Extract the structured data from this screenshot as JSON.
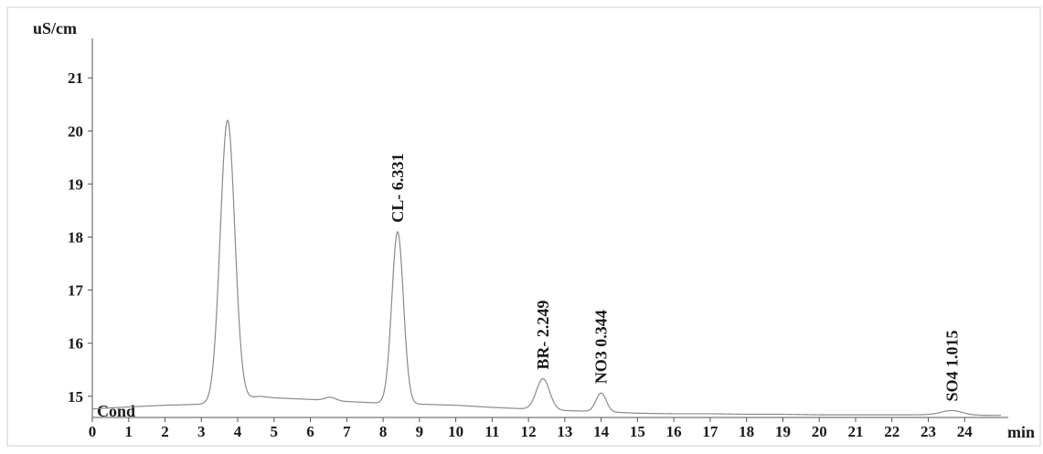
{
  "chart_data": {
    "type": "line",
    "title": "",
    "ylabel": "uS/cm",
    "xlabel": "min",
    "trace_label": "Cond",
    "xlim": [
      0,
      25
    ],
    "ylim": [
      14.6,
      21.4
    ],
    "x_ticks": [
      0,
      1,
      2,
      3,
      4,
      5,
      6,
      7,
      8,
      9,
      10,
      11,
      12,
      13,
      14,
      15,
      16,
      17,
      18,
      19,
      20,
      21,
      22,
      23,
      24
    ],
    "y_ticks": [
      15,
      16,
      17,
      18,
      19,
      20,
      21
    ],
    "grid": false,
    "series": [
      {
        "baseline": [
          [
            0,
            14.76
          ],
          [
            1,
            14.8
          ],
          [
            2,
            14.83
          ],
          [
            3,
            14.85
          ],
          [
            3.4,
            14.86
          ],
          [
            4.6,
            15.0
          ],
          [
            5,
            14.97
          ],
          [
            6,
            14.94
          ],
          [
            7,
            14.9
          ],
          [
            8,
            14.87
          ],
          [
            9,
            14.85
          ],
          [
            10,
            14.83
          ],
          [
            11,
            14.79
          ],
          [
            12,
            14.76
          ],
          [
            13,
            14.73
          ],
          [
            14,
            14.71
          ],
          [
            15,
            14.68
          ],
          [
            16,
            14.67
          ],
          [
            17,
            14.67
          ],
          [
            18,
            14.66
          ],
          [
            19,
            14.66
          ],
          [
            20,
            14.65
          ],
          [
            21,
            14.65
          ],
          [
            22,
            14.65
          ],
          [
            23,
            14.65
          ],
          [
            24,
            14.64
          ],
          [
            25,
            14.64
          ]
        ],
        "peaks": [
          {
            "rt": 3.72,
            "height": 20.2,
            "sigma": 0.2,
            "label": ""
          },
          {
            "rt": 6.55,
            "height": 14.98,
            "sigma": 0.15,
            "label": ""
          },
          {
            "rt": 8.4,
            "height": 18.1,
            "sigma": 0.16,
            "label": "CL- 6.331"
          },
          {
            "rt": 12.4,
            "height": 15.33,
            "sigma": 0.18,
            "label": "BR- 2.249"
          },
          {
            "rt": 14.0,
            "height": 15.06,
            "sigma": 0.14,
            "label": "NO3 0.344"
          },
          {
            "rt": 23.65,
            "height": 14.73,
            "sigma": 0.3,
            "label": "SO4 1.015"
          }
        ]
      }
    ]
  },
  "colors": {
    "trace": "#8a8a8a",
    "axis": "#555555",
    "text": "#1a1a1a",
    "frame": "#cfcfcf"
  }
}
